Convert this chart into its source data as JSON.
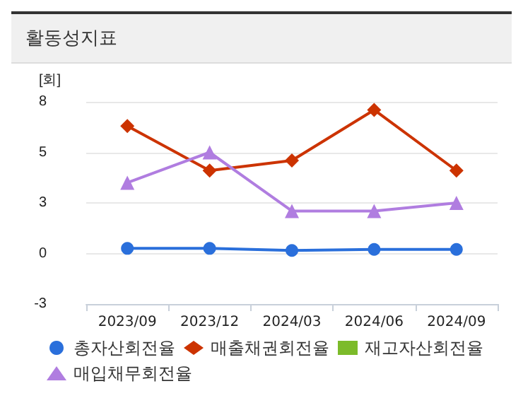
{
  "chart_data": {
    "type": "line",
    "title": "활동성지표",
    "ylabel": "[회]",
    "categories": [
      "2023/09",
      "2023/12",
      "2024/03",
      "2024/06",
      "2024/09"
    ],
    "series": [
      {
        "name": "총자산회전율",
        "color": "#2a6fdb",
        "marker": "circle",
        "values": [
          0.25,
          0.25,
          0.15,
          0.2,
          0.2
        ]
      },
      {
        "name": "매출채권회전율",
        "color": "#cc3300",
        "marker": "diamond",
        "values": [
          6.3,
          4.1,
          4.6,
          7.1,
          4.1
        ]
      },
      {
        "name": "재고자산회전율",
        "color": "#7cbb2a",
        "marker": "square",
        "values": [
          null,
          null,
          null,
          null,
          null
        ]
      },
      {
        "name": "매입채무회전율",
        "color": "#b07de0",
        "marker": "triangle",
        "values": [
          3.5,
          5.0,
          2.1,
          2.1,
          2.5
        ]
      }
    ],
    "ylim": [
      -2.5,
      7.5
    ],
    "yticks": [
      {
        "value": -2.5,
        "label": "-3"
      },
      {
        "value": 0,
        "label": "0"
      },
      {
        "value": 2.5,
        "label": "3"
      },
      {
        "value": 5,
        "label": "5"
      },
      {
        "value": 7.5,
        "label": "8"
      }
    ],
    "grid": "y",
    "legend": "bottom"
  }
}
